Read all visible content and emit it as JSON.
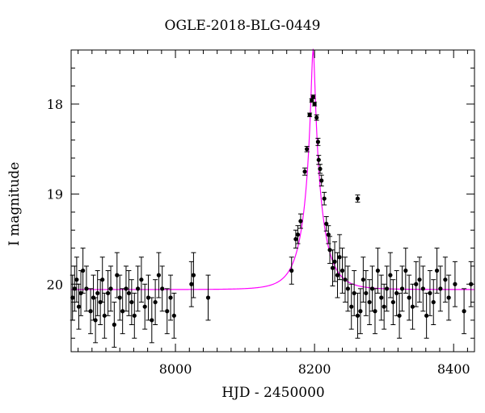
{
  "chart_data": {
    "type": "scatter",
    "title": "OGLE-2018-BLG-0449",
    "xlabel": "HJD - 2450000",
    "ylabel": "I magnitude",
    "xlim": [
      7850,
      8430
    ],
    "ylim": [
      20.75,
      17.4
    ],
    "y_inverted": true,
    "x_ticks": [
      8000,
      8200,
      8400
    ],
    "y_ticks": [
      18,
      19,
      20
    ],
    "grid": false,
    "colors": {
      "points": "#000000",
      "model": "#ff00ff"
    },
    "model": {
      "t0": 8198,
      "u0": 0.0856,
      "tE": 28,
      "baseline_mag": 20.06
    },
    "series": [
      {
        "x": [
          7852,
          7855,
          7858,
          7861,
          7864,
          7867,
          7872,
          7878,
          7882,
          7885,
          7888,
          7892,
          7895,
          7898,
          7903,
          7907,
          7912,
          7916,
          7920,
          7924,
          7929,
          7933,
          7937,
          7941,
          7946,
          7951,
          7956,
          7961,
          7966,
          7971,
          7976,
          7981,
          7988,
          7993,
          7998,
          8023,
          8026,
          8047,
          8167,
          8173,
          8176,
          8180,
          8186,
          8189,
          8193,
          8196,
          8198,
          8200,
          8203,
          8205,
          8206,
          8208,
          8210,
          8214,
          8217,
          8220,
          8222,
          8226,
          8229,
          8233,
          8236,
          8240,
          8244,
          8248,
          8253,
          8257,
          8262,
          8266,
          8270,
          8274,
          8279,
          8283,
          8287,
          8291,
          8296,
          8300,
          8304,
          8309,
          8313,
          8318,
          8322,
          8326,
          8331,
          8336,
          8341,
          8346,
          8351,
          8356,
          8361,
          8366,
          8371,
          8376,
          8381,
          8388,
          8393,
          8402,
          8415,
          8425
        ],
        "y": [
          20.15,
          20.05,
          19.95,
          20.25,
          20.1,
          19.85,
          20.05,
          20.3,
          20.15,
          20.4,
          20.1,
          20.2,
          19.95,
          20.35,
          20.1,
          20.05,
          20.45,
          19.9,
          20.15,
          20.3,
          20.05,
          20.1,
          20.2,
          20.35,
          20.05,
          19.95,
          20.25,
          20.15,
          20.4,
          20.2,
          19.9,
          20.05,
          20.3,
          20.15,
          20.35,
          20.0,
          19.9,
          20.15,
          19.85,
          19.5,
          19.45,
          19.3,
          18.75,
          18.5,
          18.12,
          17.96,
          17.92,
          18.0,
          18.15,
          18.42,
          18.62,
          18.72,
          18.85,
          19.05,
          19.33,
          19.45,
          19.62,
          19.82,
          19.75,
          19.9,
          19.7,
          19.85,
          19.95,
          20.05,
          20.25,
          20.1,
          20.35,
          20.3,
          19.95,
          20.1,
          20.2,
          20.05,
          20.3,
          19.85,
          20.15,
          20.25,
          20.05,
          19.9,
          20.2,
          20.1,
          20.35,
          20.05,
          19.85,
          20.15,
          20.25,
          20.0,
          19.95,
          20.05,
          20.35,
          20.1,
          20.2,
          19.85,
          20.05,
          19.95,
          20.15,
          20.0,
          20.3,
          20.0
        ],
        "yerr": [
          0.25,
          0.25,
          0.25,
          0.25,
          0.25,
          0.25,
          0.25,
          0.25,
          0.25,
          0.25,
          0.25,
          0.25,
          0.25,
          0.25,
          0.25,
          0.25,
          0.25,
          0.25,
          0.25,
          0.25,
          0.25,
          0.25,
          0.25,
          0.25,
          0.25,
          0.25,
          0.25,
          0.25,
          0.25,
          0.25,
          0.25,
          0.25,
          0.25,
          0.25,
          0.25,
          0.25,
          0.25,
          0.25,
          0.15,
          0.1,
          0.1,
          0.08,
          0.04,
          0.03,
          0.02,
          0.02,
          0.02,
          0.02,
          0.03,
          0.04,
          0.05,
          0.05,
          0.06,
          0.07,
          0.08,
          0.1,
          0.15,
          0.2,
          0.22,
          0.25,
          0.25,
          0.25,
          0.25,
          0.25,
          0.25,
          0.25,
          0.25,
          0.25,
          0.25,
          0.25,
          0.25,
          0.25,
          0.25,
          0.25,
          0.25,
          0.25,
          0.25,
          0.25,
          0.25,
          0.25,
          0.25,
          0.25,
          0.25,
          0.25,
          0.25,
          0.25,
          0.25,
          0.25,
          0.25,
          0.25,
          0.25,
          0.25,
          0.25,
          0.25,
          0.25,
          0.25,
          0.25,
          0.25
        ]
      },
      {
        "x": [
          8262
        ],
        "y": [
          19.05
        ],
        "yerr": [
          0.04
        ]
      }
    ]
  }
}
